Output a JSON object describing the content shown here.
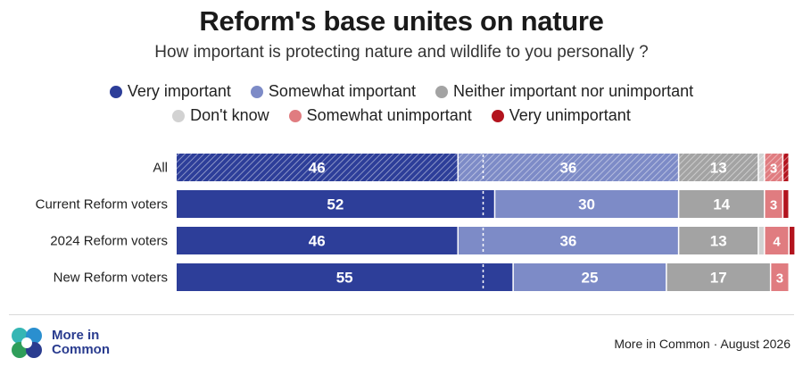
{
  "header": {
    "title": "Reform's base unites on nature",
    "subtitle": "How important is protecting nature and wildlife to you personally ?"
  },
  "legend": {
    "row1": [
      "Very important",
      "Somewhat important",
      "Neither important nor unimportant"
    ],
    "row2": [
      "Don't know",
      "Somewhat unimportant",
      "Very unimportant"
    ]
  },
  "footer": {
    "brand_line1": "More in",
    "brand_line2": "Common",
    "source": "More in Common · August 2026"
  },
  "colors": {
    "very_important": "#2d3e99",
    "somewhat_important": "#7d8bc7",
    "neither": "#a3a3a3",
    "dont_know": "#d2d2d2",
    "somewhat_unimportant": "#e07c80",
    "very_unimportant": "#b3141e"
  },
  "chart_data": {
    "type": "bar",
    "orientation": "horizontal",
    "stacked": true,
    "categories": [
      "All",
      "Current Reform voters",
      "2024 Reform voters",
      "New Reform voters"
    ],
    "series": [
      {
        "name": "Very important",
        "values": [
          46,
          52,
          46,
          55
        ]
      },
      {
        "name": "Somewhat important",
        "values": [
          36,
          30,
          36,
          25
        ]
      },
      {
        "name": "Neither important nor unimportant",
        "values": [
          13,
          14,
          13,
          17
        ]
      },
      {
        "name": "Don't know",
        "values": [
          1,
          0,
          1,
          0
        ]
      },
      {
        "name": "Somewhat unimportant",
        "values": [
          3,
          3,
          4,
          3
        ]
      },
      {
        "name": "Very unimportant",
        "values": [
          1,
          1,
          1,
          0
        ]
      }
    ],
    "value_labels": [
      [
        "46",
        "36",
        "13",
        "",
        "3",
        ""
      ],
      [
        "52",
        "30",
        "14",
        "",
        "3",
        ""
      ],
      [
        "46",
        "36",
        "13",
        "",
        "4",
        ""
      ],
      [
        "55",
        "25",
        "17",
        "",
        "3",
        ""
      ]
    ],
    "hatched_categories": [
      "All"
    ],
    "reference_line": 50,
    "xlim": [
      0,
      100
    ]
  }
}
